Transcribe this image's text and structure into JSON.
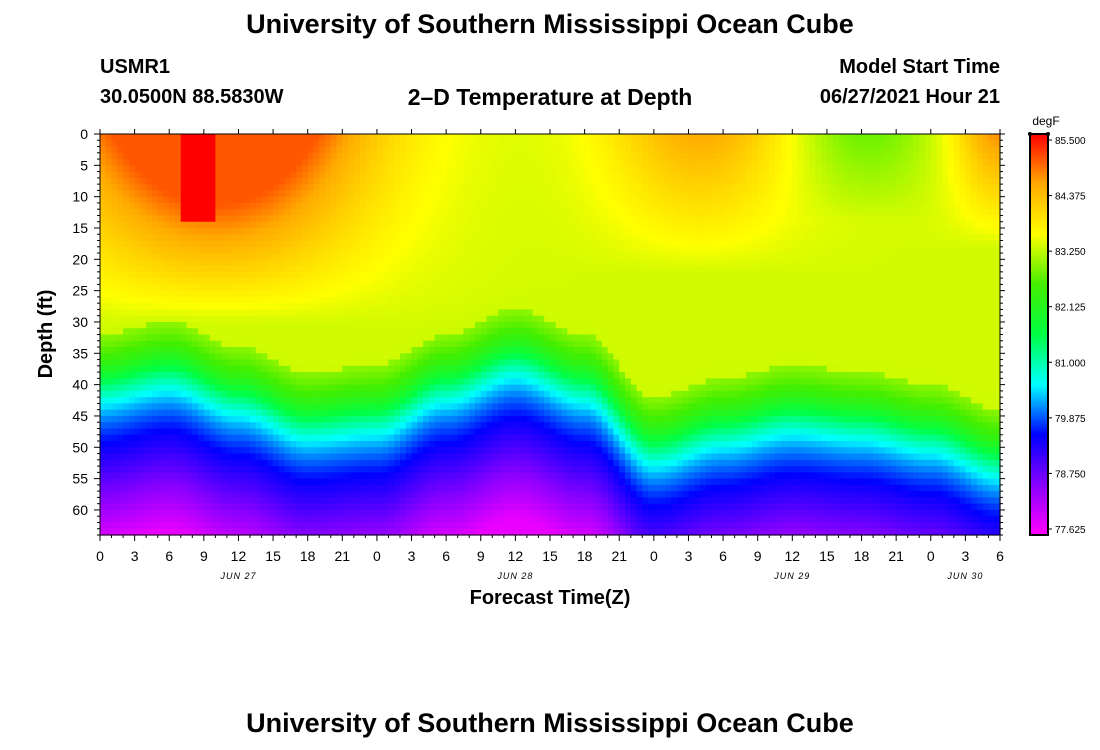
{
  "page": {
    "title": "University of Southern Mississippi Ocean Cube",
    "footer_title": "University of Southern Mississippi Ocean Cube",
    "station_id": "USMR1",
    "station_coords": "30.0500N  88.5830W",
    "model_start_label": "Model Start Time",
    "model_start_value": "06/27/2021 Hour 21"
  },
  "chart_data": {
    "type": "heatmap",
    "title": "2–D Temperature at Depth",
    "xlabel": "Forecast Time(Z)",
    "ylabel": "Depth (ft)",
    "x_range_hours_from_jun27_00z": [
      0,
      78
    ],
    "x_tick_labels": [
      "0",
      "3",
      "6",
      "9",
      "12",
      "15",
      "18",
      "21",
      "0",
      "3",
      "6",
      "9",
      "12",
      "15",
      "18",
      "21",
      "0",
      "3",
      "6",
      "9",
      "12",
      "15",
      "18",
      "21",
      "0",
      "3",
      "6"
    ],
    "date_labels": [
      {
        "label": "JUN 27",
        "at_tick": "12"
      },
      {
        "label": "JUN 28",
        "at_tick": "12"
      },
      {
        "label": "JUN 29",
        "at_tick": "12"
      },
      {
        "label": "JUN 30",
        "at_tick": "3"
      }
    ],
    "y_range_ft": [
      0,
      64
    ],
    "y_inverted": true,
    "y_tick_labels": [
      "0",
      "5",
      "10",
      "15",
      "20",
      "25",
      "30",
      "35",
      "40",
      "45",
      "50",
      "55",
      "60"
    ],
    "colorbar": {
      "units": "degF",
      "min": 77.625,
      "max": 85.5,
      "tick_labels": [
        "85.500",
        "84.375",
        "83.250",
        "82.125",
        "81.000",
        "79.875",
        "78.750",
        "77.625"
      ],
      "colors_low_to_high": [
        "#ff00ff",
        "#8800ff",
        "#0000ff",
        "#00ffff",
        "#00ff44",
        "#44ee00",
        "#ffff00",
        "#ffaa00",
        "#ff0000"
      ]
    },
    "mixed_layer": {
      "description": "depth (ft) where temperature transitions to the cold bottom layer, per forecast hour",
      "hours": [
        0,
        6,
        12,
        18,
        24,
        30,
        36,
        42,
        48,
        54,
        60,
        66,
        72,
        78
      ],
      "thermocline_depth_ft": [
        40,
        38,
        42,
        46,
        45,
        40,
        36,
        40,
        50,
        47,
        45,
        46,
        48,
        52
      ]
    },
    "features": [
      {
        "label": "warm core",
        "temperature_degF": 85.5,
        "hours": [
          7,
          10
        ],
        "depth_ft": [
          0,
          14
        ]
      },
      {
        "label": "surface warm",
        "temperature_degF": 85.0,
        "hours": [
          0,
          24
        ],
        "depth_ft": [
          0,
          25
        ]
      },
      {
        "label": "cool surface patch",
        "temperature_degF": 83.5,
        "hours": [
          58,
          74
        ],
        "depth_ft": [
          0,
          12
        ]
      },
      {
        "label": "bottom",
        "temperature_degF": 77.8,
        "hours": [
          0,
          78
        ],
        "depth_ft": [
          58,
          64
        ]
      }
    ]
  }
}
